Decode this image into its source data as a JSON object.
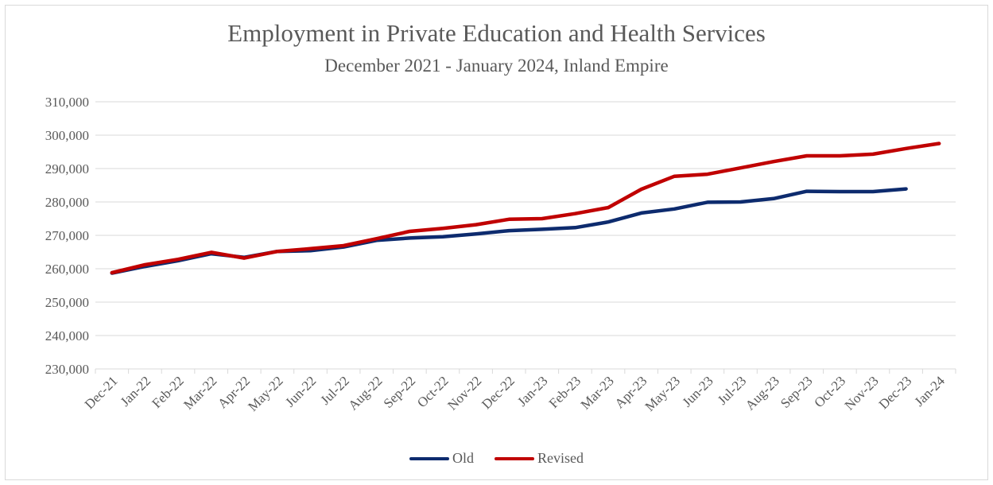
{
  "chart_data": {
    "type": "line",
    "title": "Employment in Private Education and Health Services",
    "subtitle": "December 2021 - January 2024, Inland Empire",
    "xlabel": "",
    "ylabel": "",
    "ylim": [
      230000,
      310000
    ],
    "y_ticks": [
      "230,000",
      "240,000",
      "250,000",
      "260,000",
      "270,000",
      "280,000",
      "290,000",
      "300,000",
      "310,000"
    ],
    "categories": [
      "Dec-21",
      "Jan-22",
      "Feb-22",
      "Mar-22",
      "Apr-22",
      "May-22",
      "Jun-22",
      "Jul-22",
      "Aug-22",
      "Sep-22",
      "Oct-22",
      "Nov-22",
      "Dec-22",
      "Jan-23",
      "Feb-23",
      "Mar-23",
      "Apr-23",
      "May-23",
      "Jun-23",
      "Jul-23",
      "Aug-23",
      "Sep-23",
      "Oct-23",
      "Nov-23",
      "Dec-23",
      "Jan-24"
    ],
    "grid": true,
    "legend_position": "bottom",
    "series": [
      {
        "name": "Old",
        "color": "#0d2b6e",
        "values": [
          258700,
          260700,
          262400,
          264500,
          263400,
          265200,
          265400,
          266500,
          268500,
          269200,
          269600,
          270400,
          271400,
          271800,
          272300,
          274000,
          276700,
          277900,
          279900,
          280000,
          281000,
          283200,
          283100,
          283100,
          283900,
          null
        ]
      },
      {
        "name": "Revised",
        "color": "#c00000",
        "values": [
          258800,
          261200,
          262800,
          264900,
          263200,
          265200,
          266000,
          266900,
          269000,
          271200,
          272100,
          273200,
          274800,
          275000,
          276500,
          278300,
          283800,
          287700,
          288300,
          290200,
          292100,
          293800,
          293800,
          294300,
          296000,
          297500
        ]
      }
    ]
  }
}
